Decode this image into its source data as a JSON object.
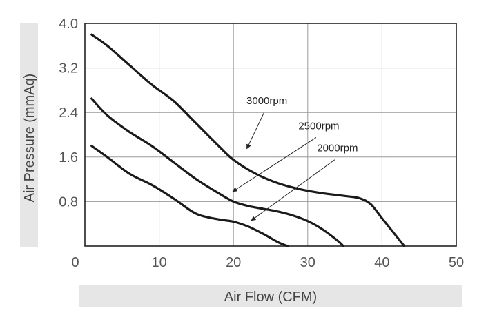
{
  "chart_data": {
    "type": "line",
    "title": "",
    "xlabel": "Air Flow (CFM)",
    "ylabel": "Air Pressure (mmAq)",
    "xlim": [
      0,
      50
    ],
    "ylim": [
      0,
      4.0
    ],
    "xticks": [
      "0",
      "10",
      "20",
      "30",
      "40",
      "50"
    ],
    "yticks": [
      "0.8",
      "1.6",
      "2.4",
      "3.2",
      "4.0"
    ],
    "grid": true,
    "series": [
      {
        "name": "3000rpm",
        "x": [
          0.9,
          3,
          6,
          9,
          12,
          15,
          18,
          20,
          23,
          26,
          29,
          32,
          35,
          37,
          38.5,
          40,
          41.5,
          43
        ],
        "y": [
          3.8,
          3.6,
          3.25,
          2.9,
          2.6,
          2.2,
          1.8,
          1.55,
          1.3,
          1.13,
          1.02,
          0.95,
          0.9,
          0.86,
          0.75,
          0.5,
          0.25,
          0.0
        ]
      },
      {
        "name": "2500rpm",
        "x": [
          0.9,
          3,
          6,
          9,
          12,
          15,
          18,
          20,
          22,
          24,
          26,
          28,
          30,
          32,
          34,
          34.8
        ],
        "y": [
          2.65,
          2.35,
          2.05,
          1.8,
          1.5,
          1.2,
          0.95,
          0.8,
          0.72,
          0.67,
          0.62,
          0.55,
          0.45,
          0.3,
          0.1,
          0.0
        ]
      },
      {
        "name": "2000rpm",
        "x": [
          0.9,
          3,
          6,
          9,
          12,
          15,
          18,
          20,
          22,
          24,
          26,
          27.3
        ],
        "y": [
          1.8,
          1.6,
          1.3,
          1.1,
          0.85,
          0.58,
          0.48,
          0.44,
          0.35,
          0.22,
          0.07,
          0.0
        ]
      }
    ],
    "annotations": [
      {
        "text": "3000rpm",
        "series": "3000rpm",
        "label_at": [
          24.5,
          2.55
        ],
        "arrow_to": [
          21.8,
          1.75
        ]
      },
      {
        "text": "2500rpm",
        "series": "2500rpm",
        "label_at": [
          31.5,
          2.1
        ],
        "arrow_to": [
          19.9,
          0.98
        ]
      },
      {
        "text": "2000rpm",
        "series": "2000rpm",
        "label_at": [
          34.0,
          1.7
        ],
        "arrow_to": [
          22.4,
          0.46
        ]
      }
    ]
  }
}
